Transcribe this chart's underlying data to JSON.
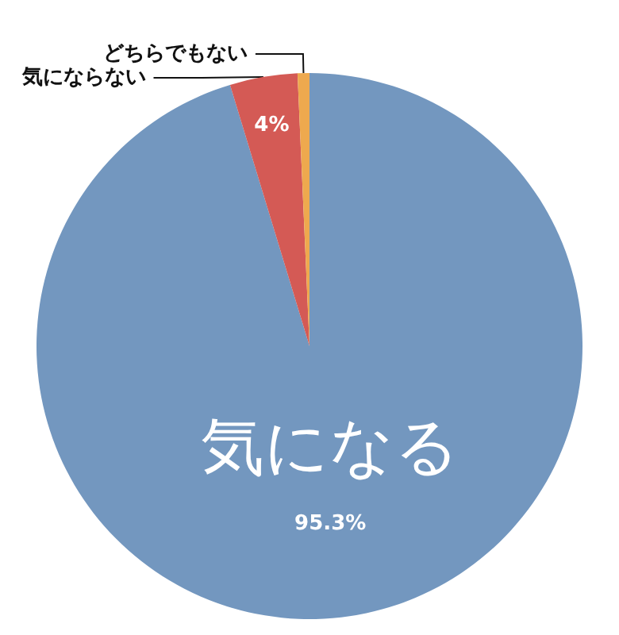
{
  "chart_data": {
    "type": "pie",
    "categories": [
      "気になる",
      "気にならない",
      "どちらでもない"
    ],
    "values": [
      95.3,
      4,
      0.7
    ],
    "colors": [
      "#7397bf",
      "#d45a55",
      "#eea94e"
    ],
    "value_labels": [
      "95.3%",
      "4%",
      null
    ],
    "legend": false
  }
}
